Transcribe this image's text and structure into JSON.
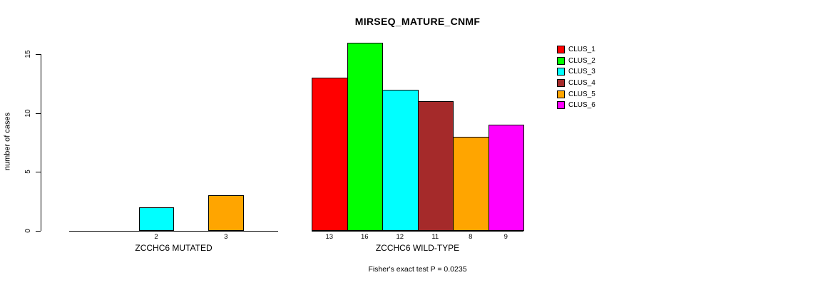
{
  "chart_data": {
    "type": "bar",
    "title": "MIRSEQ_MATURE_CNMF",
    "ylabel": "number of cases",
    "yticks": [
      0,
      5,
      10,
      15
    ],
    "ylim": [
      0,
      16.5
    ],
    "grid": false,
    "legend_position": "right",
    "clusters": [
      {
        "name": "CLUS_1",
        "color": "#FF0000"
      },
      {
        "name": "CLUS_2",
        "color": "#00FF00"
      },
      {
        "name": "CLUS_3",
        "color": "#00FFFF"
      },
      {
        "name": "CLUS_4",
        "color": "#A52A2A"
      },
      {
        "name": "CLUS_5",
        "color": "#FFA500"
      },
      {
        "name": "CLUS_6",
        "color": "#FF00FF"
      }
    ],
    "groups": [
      {
        "label": "ZCCHC6 MUTATED",
        "values": [
          0,
          0,
          2,
          0,
          3,
          0
        ]
      },
      {
        "label": "ZCCHC6 WILD-TYPE",
        "values": [
          13,
          16,
          12,
          11,
          8,
          9
        ]
      }
    ],
    "footnote": "Fisher's exact test P = 0.0235"
  }
}
